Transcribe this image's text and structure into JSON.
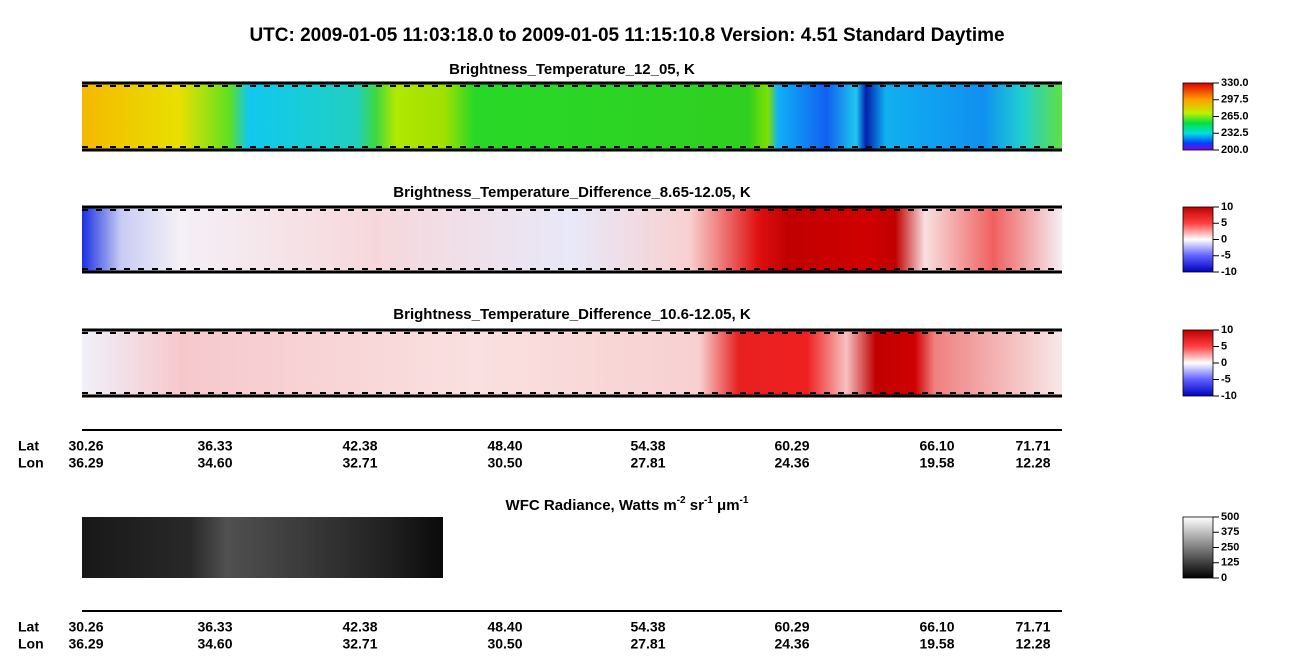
{
  "title": "UTC:  2009-01-05   11:03:18.0  to  2009-01-05   11:15:10.8    Version: 4.51  Standard Daytime",
  "panels": [
    {
      "title": "Brightness_Temperature_12_05, K",
      "colorbar": [
        "330.0",
        "297.5",
        "265.0",
        "232.5",
        "200.0"
      ]
    },
    {
      "title": "Brightness_Temperature_Difference_8.65-12.05, K",
      "colorbar": [
        "10",
        "5",
        "0",
        "-5",
        "-10"
      ]
    },
    {
      "title": "Brightness_Temperature_Difference_10.6-12.05, K",
      "colorbar": [
        "10",
        "5",
        "0",
        "-5",
        "-10"
      ]
    },
    {
      "title": [
        "WFC Radiance, Watts m",
        "-2",
        " sr",
        "-1",
        " μm",
        "-1"
      ],
      "colorbar": [
        "500",
        "375",
        "250",
        "125",
        "0"
      ]
    }
  ],
  "axes": [
    {
      "lat_label": "Lat",
      "lon_label": "Lon",
      "lat": [
        "30.26",
        "36.33",
        "42.38",
        "48.40",
        "54.38",
        "60.29",
        "66.10",
        "71.71"
      ],
      "lon": [
        "36.29",
        "34.60",
        "32.71",
        "30.50",
        "27.81",
        "24.36",
        "19.58",
        "12.28"
      ]
    },
    {
      "lat_label": "Lat",
      "lon_label": "Lon",
      "lat": [
        "30.26",
        "36.33",
        "42.38",
        "48.40",
        "54.38",
        "60.29",
        "66.10",
        "71.71"
      ],
      "lon": [
        "36.29",
        "34.60",
        "32.71",
        "30.50",
        "27.81",
        "24.36",
        "19.58",
        "12.28"
      ]
    }
  ]
}
